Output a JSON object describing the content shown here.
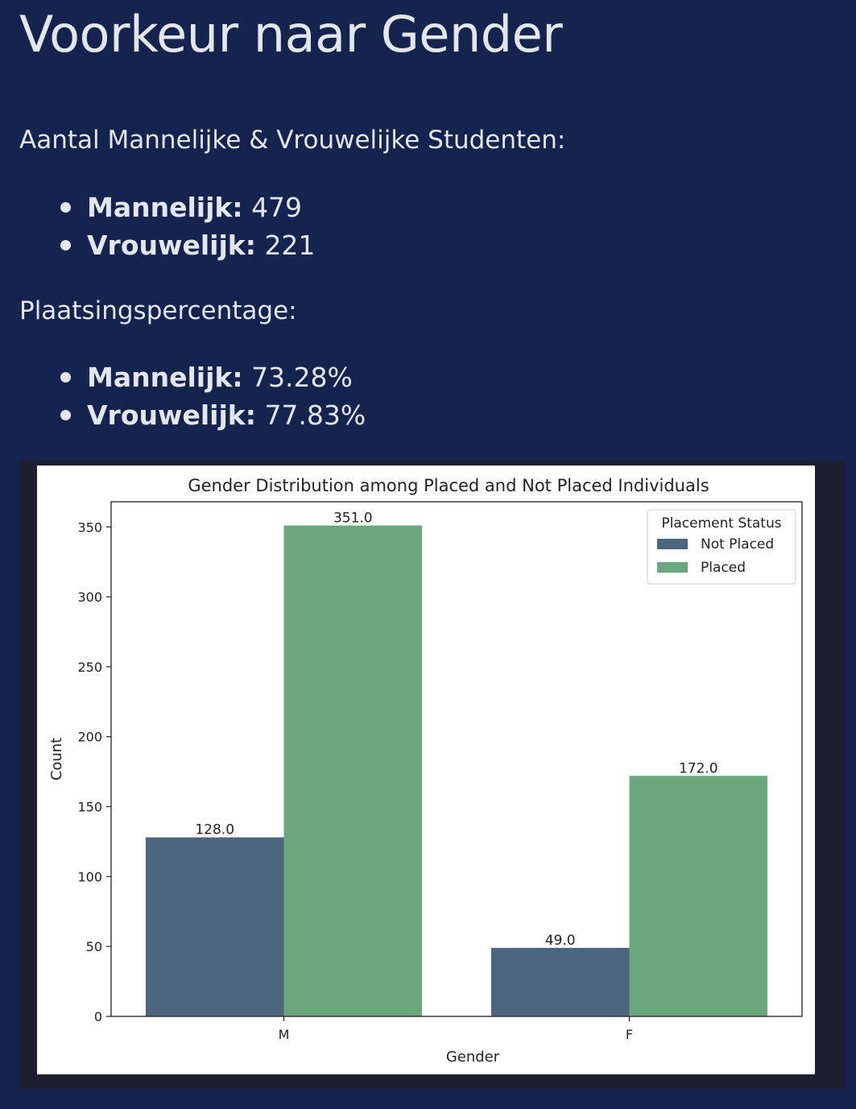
{
  "page": {
    "title": "Voorkeur naar Gender",
    "count_intro": "Aantal Mannelijke & Vrouwelijke Studenten:",
    "counts": [
      {
        "label": "Mannelijk:",
        "value": "479"
      },
      {
        "label": "Vrouwelijk:",
        "value": "221"
      }
    ],
    "rate_intro": "Plaatsingspercentage:",
    "rates": [
      {
        "label": "Mannelijk:",
        "value": "73.28%"
      },
      {
        "label": "Vrouwelijk:",
        "value": "77.83%"
      }
    ]
  },
  "chart_data": {
    "type": "bar",
    "title": "Gender Distribution among Placed and Not Placed Individuals",
    "xlabel": "Gender",
    "ylabel": "Count",
    "categories": [
      "M",
      "F"
    ],
    "series": [
      {
        "name": "Not Placed",
        "color": "#4c6680",
        "values": [
          128,
          49
        ],
        "labels": [
          "128.0",
          "49.0"
        ]
      },
      {
        "name": "Placed",
        "color": "#6aa77c",
        "values": [
          351,
          172
        ],
        "labels": [
          "351.0",
          "172.0"
        ]
      }
    ],
    "ylim": [
      0,
      368
    ],
    "yticks": [
      0,
      50,
      100,
      150,
      200,
      250,
      300,
      350
    ],
    "legend": {
      "title": "Placement Status",
      "placement": "top-right"
    },
    "grid": false
  }
}
